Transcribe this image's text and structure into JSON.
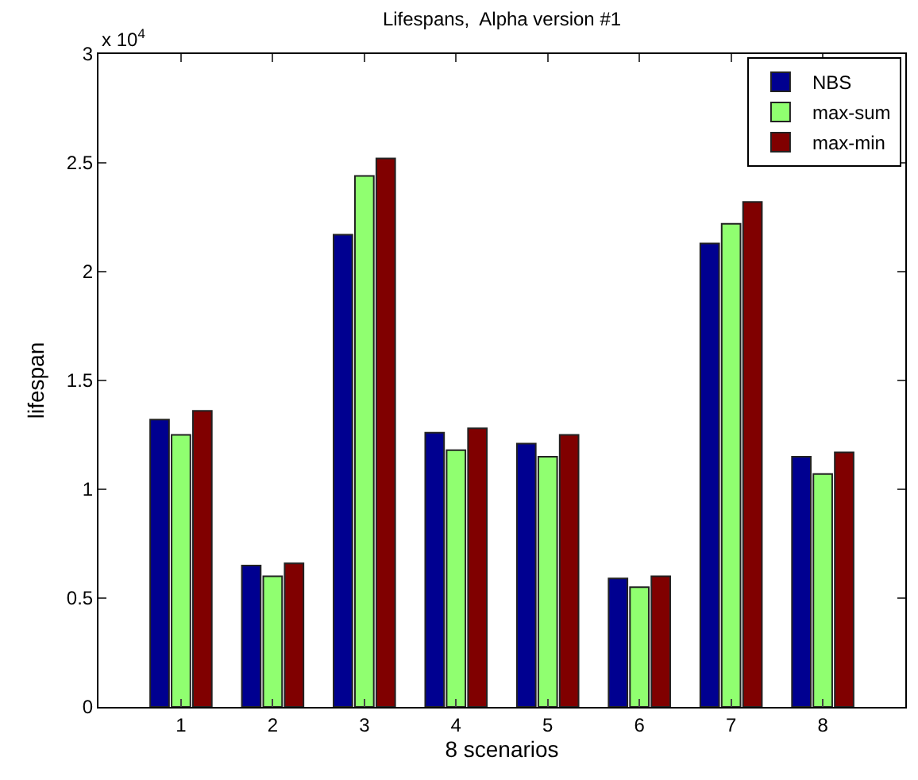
{
  "chart_data": {
    "type": "bar",
    "title": "Lifespans,  Alpha version #1",
    "xlabel": "8 scenarios",
    "ylabel": "lifespan",
    "annotations": [
      "x 10$^{4}$"
    ],
    "categories": [
      "1",
      "2",
      "3",
      "4",
      "5",
      "6",
      "7",
      "8"
    ],
    "series": [
      {
        "name": "NBS",
        "color": "#000090",
        "values": [
          1.32,
          0.65,
          2.17,
          1.26,
          1.21,
          0.59,
          2.13,
          1.15
        ]
      },
      {
        "name": "max-sum",
        "color": "#90ff70",
        "values": [
          1.25,
          0.6,
          2.44,
          1.18,
          1.15,
          0.55,
          2.22,
          1.07
        ]
      },
      {
        "name": "max-min",
        "color": "#800000",
        "values": [
          1.36,
          0.66,
          2.52,
          1.28,
          1.25,
          0.6,
          2.32,
          1.17
        ]
      }
    ],
    "ylim": [
      0,
      3
    ],
    "yticks": [
      0,
      0.5,
      1,
      1.5,
      2,
      2.5,
      3
    ],
    "legend": "top right"
  }
}
